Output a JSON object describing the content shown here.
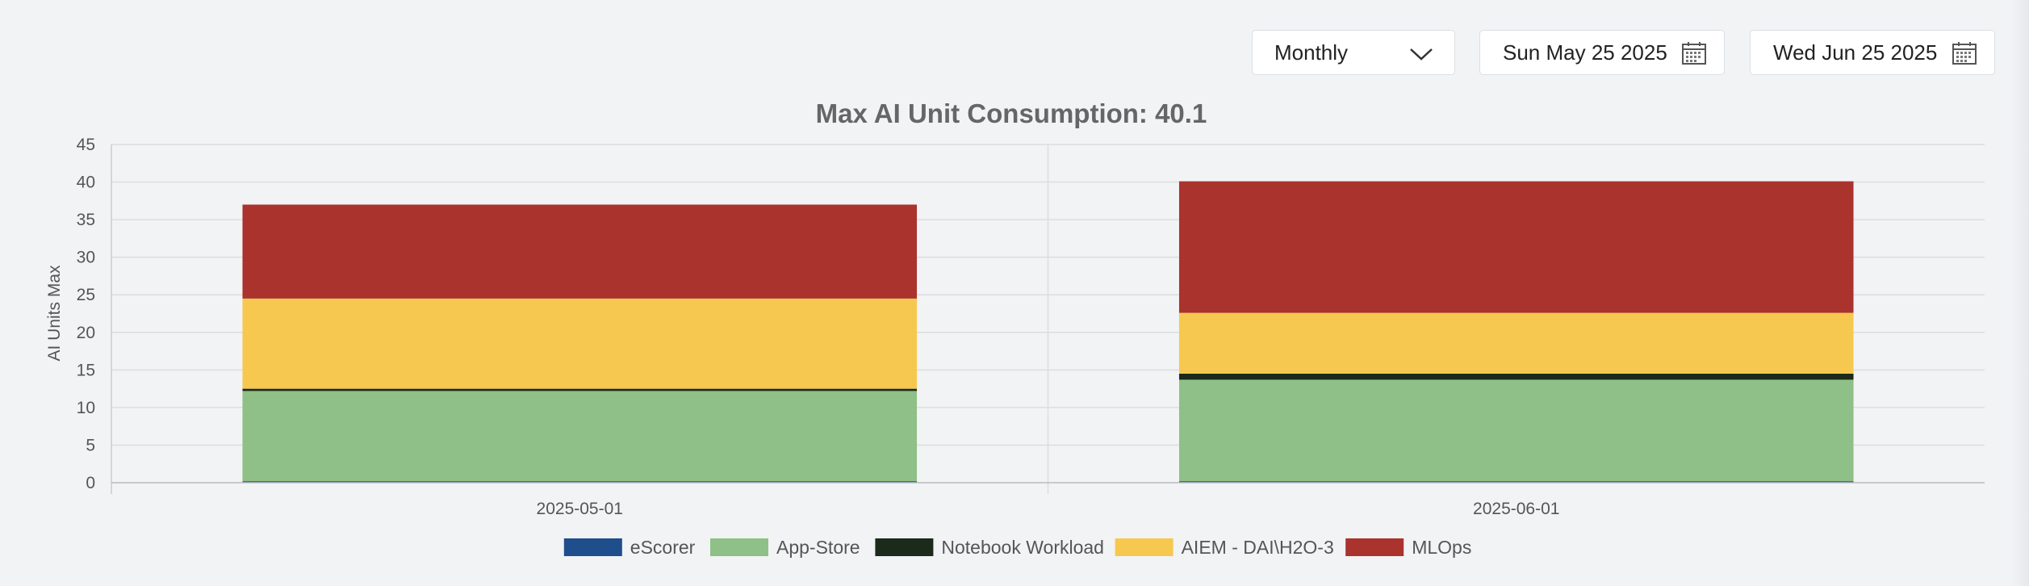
{
  "controls": {
    "period": "Monthly",
    "start_date": "Sun May 25 2025",
    "end_date": "Wed Jun 25 2025"
  },
  "icons": {
    "chevron": "chevron-down-icon",
    "calendar": "calendar-icon"
  },
  "chart_data": {
    "type": "bar",
    "stacked": true,
    "title": "Max AI Unit Consumption: 40.1",
    "ylabel": "AI Units Max",
    "xlabel": "",
    "ylim": [
      0,
      45
    ],
    "yticks": [
      0,
      5,
      10,
      15,
      20,
      25,
      30,
      35,
      40,
      45
    ],
    "categories": [
      "2025-05-01",
      "2025-06-01"
    ],
    "grid": true,
    "legend_position": "bottom",
    "series": [
      {
        "name": "eScorer",
        "color": "#1f4e8c",
        "values": [
          0.2,
          0.2
        ]
      },
      {
        "name": "App-Store",
        "color": "#8fc087",
        "values": [
          12.0,
          13.5
        ]
      },
      {
        "name": "Notebook Workload",
        "color": "#1b2a1a",
        "values": [
          0.3,
          0.8
        ]
      },
      {
        "name": "AIEM - DAI\\H2O-3",
        "color": "#f6c84f",
        "values": [
          12.0,
          8.1
        ]
      },
      {
        "name": "MLOps",
        "color": "#aa332d",
        "values": [
          12.5,
          17.5
        ]
      }
    ]
  }
}
